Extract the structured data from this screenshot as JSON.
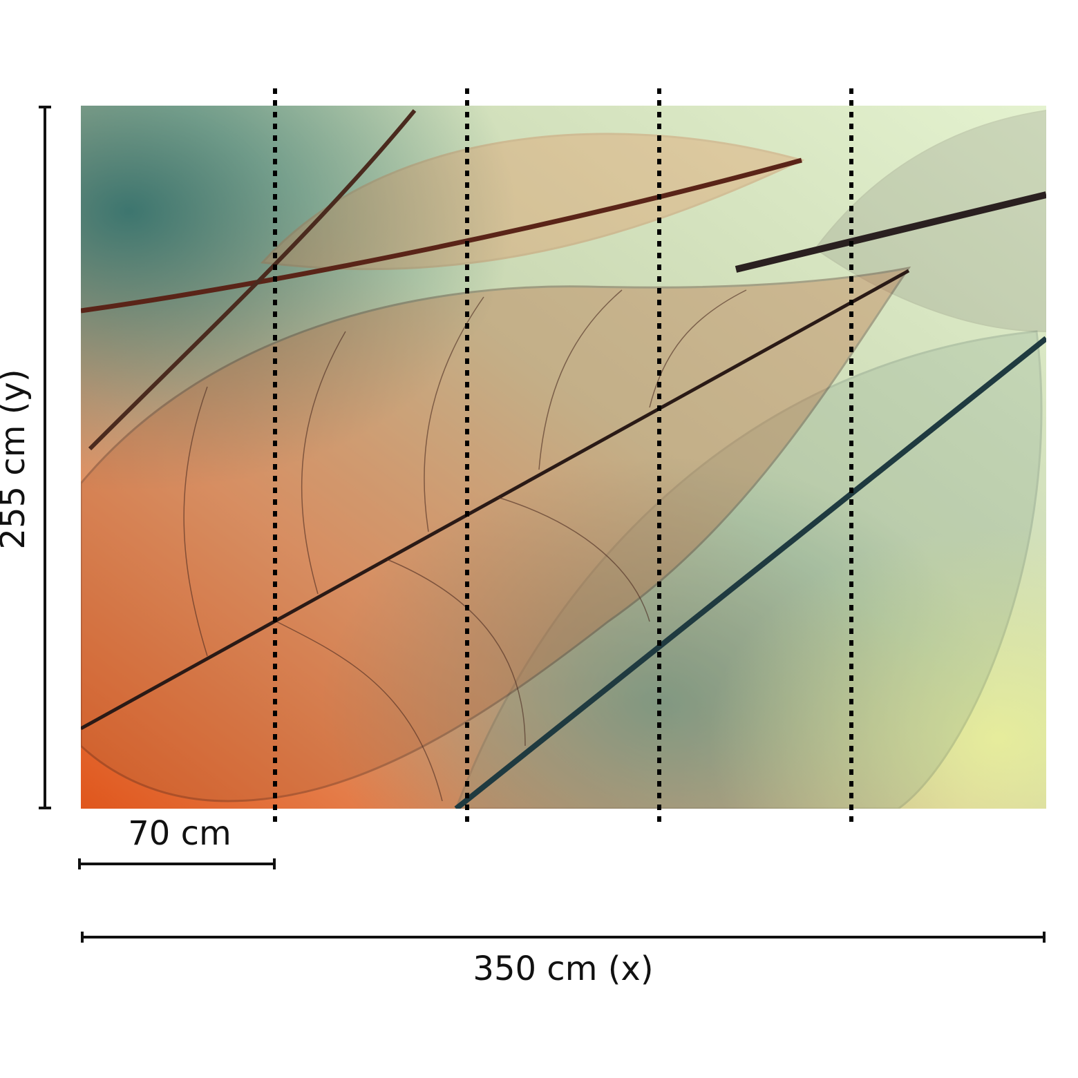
{
  "labels": {
    "height": "255 cm (y)",
    "panel_width": "70 cm",
    "width": "350 cm (x)"
  }
}
